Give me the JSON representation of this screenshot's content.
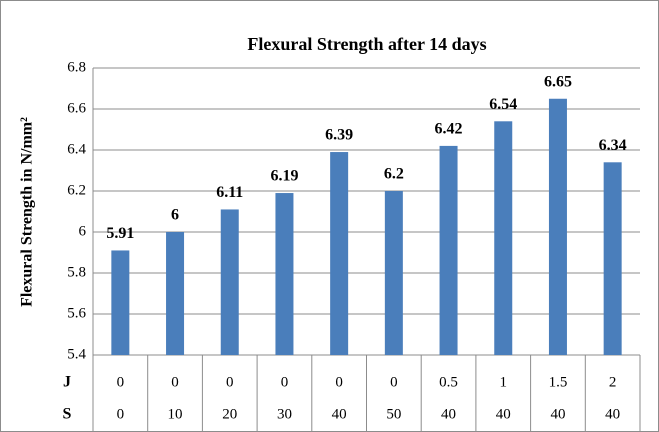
{
  "chart_data": {
    "type": "bar",
    "title": "Flexural Strength after 14 days",
    "y_label": "Flexural Strength in N/mm²",
    "category_rows": [
      {
        "name": "J",
        "labels": [
          "0",
          "0",
          "0",
          "0",
          "0",
          "0",
          "0.5",
          "1",
          "1.5",
          "2"
        ]
      },
      {
        "name": "S",
        "labels": [
          "0",
          "10",
          "20",
          "30",
          "40",
          "50",
          "40",
          "40",
          "40",
          "40"
        ]
      }
    ],
    "values": [
      5.91,
      6,
      6.11,
      6.19,
      6.39,
      6.2,
      6.42,
      6.54,
      6.65,
      6.34
    ],
    "color": "#4a7ebb",
    "ylim": [
      5.4,
      6.8
    ],
    "yticks": [
      5.4,
      5.6,
      5.8,
      6,
      6.2,
      6.4,
      6.6,
      6.8
    ],
    "grid": true
  }
}
